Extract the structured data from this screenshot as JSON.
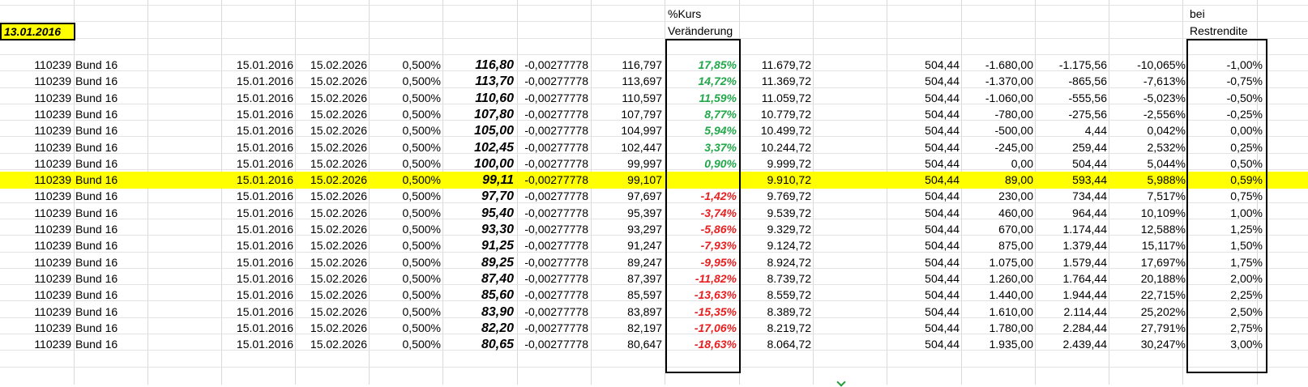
{
  "sheet": {
    "date_cell": "13.01.2016",
    "header_kurs": [
      "%Kurs",
      "Veränderung"
    ],
    "header_rendite": [
      "bei",
      "Restrendite"
    ],
    "rows": [
      {
        "id": "110239",
        "name": "Bund 16",
        "d1": "15.01.2016",
        "d2": "15.02.2026",
        "coupon": "0,500%",
        "price": "116,80",
        "factor": "-0,00277778",
        "adj": "116,797",
        "pct": "17,85%",
        "pct_type": "pos",
        "value": "11.679,72",
        "c1": "504,44",
        "c2": "-1.680,00",
        "c3": "-1.175,56",
        "c4": "-10,065%",
        "yield": "-1,00%"
      },
      {
        "id": "110239",
        "name": "Bund 16",
        "d1": "15.01.2016",
        "d2": "15.02.2026",
        "coupon": "0,500%",
        "price": "113,70",
        "factor": "-0,00277778",
        "adj": "113,697",
        "pct": "14,72%",
        "pct_type": "pos",
        "value": "11.369,72",
        "c1": "504,44",
        "c2": "-1.370,00",
        "c3": "-865,56",
        "c4": "-7,613%",
        "yield": "-0,75%"
      },
      {
        "id": "110239",
        "name": "Bund 16",
        "d1": "15.01.2016",
        "d2": "15.02.2026",
        "coupon": "0,500%",
        "price": "110,60",
        "factor": "-0,00277778",
        "adj": "110,597",
        "pct": "11,59%",
        "pct_type": "pos",
        "value": "11.059,72",
        "c1": "504,44",
        "c2": "-1.060,00",
        "c3": "-555,56",
        "c4": "-5,023%",
        "yield": "-0,50%"
      },
      {
        "id": "110239",
        "name": "Bund 16",
        "d1": "15.01.2016",
        "d2": "15.02.2026",
        "coupon": "0,500%",
        "price": "107,80",
        "factor": "-0,00277778",
        "adj": "107,797",
        "pct": "8,77%",
        "pct_type": "pos",
        "value": "10.779,72",
        "c1": "504,44",
        "c2": "-780,00",
        "c3": "-275,56",
        "c4": "-2,556%",
        "yield": "-0,25%"
      },
      {
        "id": "110239",
        "name": "Bund 16",
        "d1": "15.01.2016",
        "d2": "15.02.2026",
        "coupon": "0,500%",
        "price": "105,00",
        "factor": "-0,00277778",
        "adj": "104,997",
        "pct": "5,94%",
        "pct_type": "pos",
        "value": "10.499,72",
        "c1": "504,44",
        "c2": "-500,00",
        "c3": "4,44",
        "c4": "0,042%",
        "yield": "0,00%"
      },
      {
        "id": "110239",
        "name": "Bund 16",
        "d1": "15.01.2016",
        "d2": "15.02.2026",
        "coupon": "0,500%",
        "price": "102,45",
        "factor": "-0,00277778",
        "adj": "102,447",
        "pct": "3,37%",
        "pct_type": "pos",
        "value": "10.244,72",
        "c1": "504,44",
        "c2": "-245,00",
        "c3": "259,44",
        "c4": "2,532%",
        "yield": "0,25%"
      },
      {
        "id": "110239",
        "name": "Bund 16",
        "d1": "15.01.2016",
        "d2": "15.02.2026",
        "coupon": "0,500%",
        "price": "100,00",
        "factor": "-0,00277778",
        "adj": "99,997",
        "pct": "0,90%",
        "pct_type": "pos",
        "value": "9.999,72",
        "c1": "504,44",
        "c2": "0,00",
        "c3": "504,44",
        "c4": "5,044%",
        "yield": "0,50%"
      },
      {
        "id": "110239",
        "name": "Bund 16",
        "d1": "15.01.2016",
        "d2": "15.02.2026",
        "coupon": "0,500%",
        "price": "99,11",
        "factor": "-0,00277778",
        "adj": "99,107",
        "pct": "",
        "pct_type": "pos",
        "value": "9.910,72",
        "c1": "504,44",
        "c2": "89,00",
        "c3": "593,44",
        "c4": "5,988%",
        "yield": "0,59%",
        "highlight": true
      },
      {
        "id": "110239",
        "name": "Bund 16",
        "d1": "15.01.2016",
        "d2": "15.02.2026",
        "coupon": "0,500%",
        "price": "97,70",
        "factor": "-0,00277778",
        "adj": "97,697",
        "pct": "-1,42%",
        "pct_type": "neg",
        "value": "9.769,72",
        "c1": "504,44",
        "c2": "230,00",
        "c3": "734,44",
        "c4": "7,517%",
        "yield": "0,75%"
      },
      {
        "id": "110239",
        "name": "Bund 16",
        "d1": "15.01.2016",
        "d2": "15.02.2026",
        "coupon": "0,500%",
        "price": "95,40",
        "factor": "-0,00277778",
        "adj": "95,397",
        "pct": "-3,74%",
        "pct_type": "neg",
        "value": "9.539,72",
        "c1": "504,44",
        "c2": "460,00",
        "c3": "964,44",
        "c4": "10,109%",
        "yield": "1,00%"
      },
      {
        "id": "110239",
        "name": "Bund 16",
        "d1": "15.01.2016",
        "d2": "15.02.2026",
        "coupon": "0,500%",
        "price": "93,30",
        "factor": "-0,00277778",
        "adj": "93,297",
        "pct": "-5,86%",
        "pct_type": "neg",
        "value": "9.329,72",
        "c1": "504,44",
        "c2": "670,00",
        "c3": "1.174,44",
        "c4": "12,588%",
        "yield": "1,25%"
      },
      {
        "id": "110239",
        "name": "Bund 16",
        "d1": "15.01.2016",
        "d2": "15.02.2026",
        "coupon": "0,500%",
        "price": "91,25",
        "factor": "-0,00277778",
        "adj": "91,247",
        "pct": "-7,93%",
        "pct_type": "neg",
        "value": "9.124,72",
        "c1": "504,44",
        "c2": "875,00",
        "c3": "1.379,44",
        "c4": "15,117%",
        "yield": "1,50%"
      },
      {
        "id": "110239",
        "name": "Bund 16",
        "d1": "15.01.2016",
        "d2": "15.02.2026",
        "coupon": "0,500%",
        "price": "89,25",
        "factor": "-0,00277778",
        "adj": "89,247",
        "pct": "-9,95%",
        "pct_type": "neg",
        "value": "8.924,72",
        "c1": "504,44",
        "c2": "1.075,00",
        "c3": "1.579,44",
        "c4": "17,697%",
        "yield": "1,75%"
      },
      {
        "id": "110239",
        "name": "Bund 16",
        "d1": "15.01.2016",
        "d2": "15.02.2026",
        "coupon": "0,500%",
        "price": "87,40",
        "factor": "-0,00277778",
        "adj": "87,397",
        "pct": "-11,82%",
        "pct_type": "neg",
        "value": "8.739,72",
        "c1": "504,44",
        "c2": "1.260,00",
        "c3": "1.764,44",
        "c4": "20,188%",
        "yield": "2,00%"
      },
      {
        "id": "110239",
        "name": "Bund 16",
        "d1": "15.01.2016",
        "d2": "15.02.2026",
        "coupon": "0,500%",
        "price": "85,60",
        "factor": "-0,00277778",
        "adj": "85,597",
        "pct": "-13,63%",
        "pct_type": "neg",
        "value": "8.559,72",
        "c1": "504,44",
        "c2": "1.440,00",
        "c3": "1.944,44",
        "c4": "22,715%",
        "yield": "2,25%"
      },
      {
        "id": "110239",
        "name": "Bund 16",
        "d1": "15.01.2016",
        "d2": "15.02.2026",
        "coupon": "0,500%",
        "price": "83,90",
        "factor": "-0,00277778",
        "adj": "83,897",
        "pct": "-15,35%",
        "pct_type": "neg",
        "value": "8.389,72",
        "c1": "504,44",
        "c2": "1.610,00",
        "c3": "2.114,44",
        "c4": "25,202%",
        "yield": "2,50%"
      },
      {
        "id": "110239",
        "name": "Bund 16",
        "d1": "15.01.2016",
        "d2": "15.02.2026",
        "coupon": "0,500%",
        "price": "82,20",
        "factor": "-0,00277778",
        "adj": "82,197",
        "pct": "-17,06%",
        "pct_type": "neg",
        "value": "8.219,72",
        "c1": "504,44",
        "c2": "1.780,00",
        "c3": "2.284,44",
        "c4": "27,791%",
        "yield": "2,75%"
      },
      {
        "id": "110239",
        "name": "Bund 16",
        "d1": "15.01.2016",
        "d2": "15.02.2026",
        "coupon": "0,500%",
        "price": "80,65",
        "factor": "-0,00277778",
        "adj": "80,647",
        "pct": "-18,63%",
        "pct_type": "neg",
        "value": "8.064,72",
        "c1": "504,44",
        "c2": "1.935,00",
        "c3": "2.439,44",
        "c4": "30,247%",
        "yield": "3,00%"
      }
    ]
  },
  "colors": {
    "highlight": "#ffff00",
    "positive": "#22a84a",
    "negative": "#e81f1f",
    "grid": "#d9d9d9"
  }
}
